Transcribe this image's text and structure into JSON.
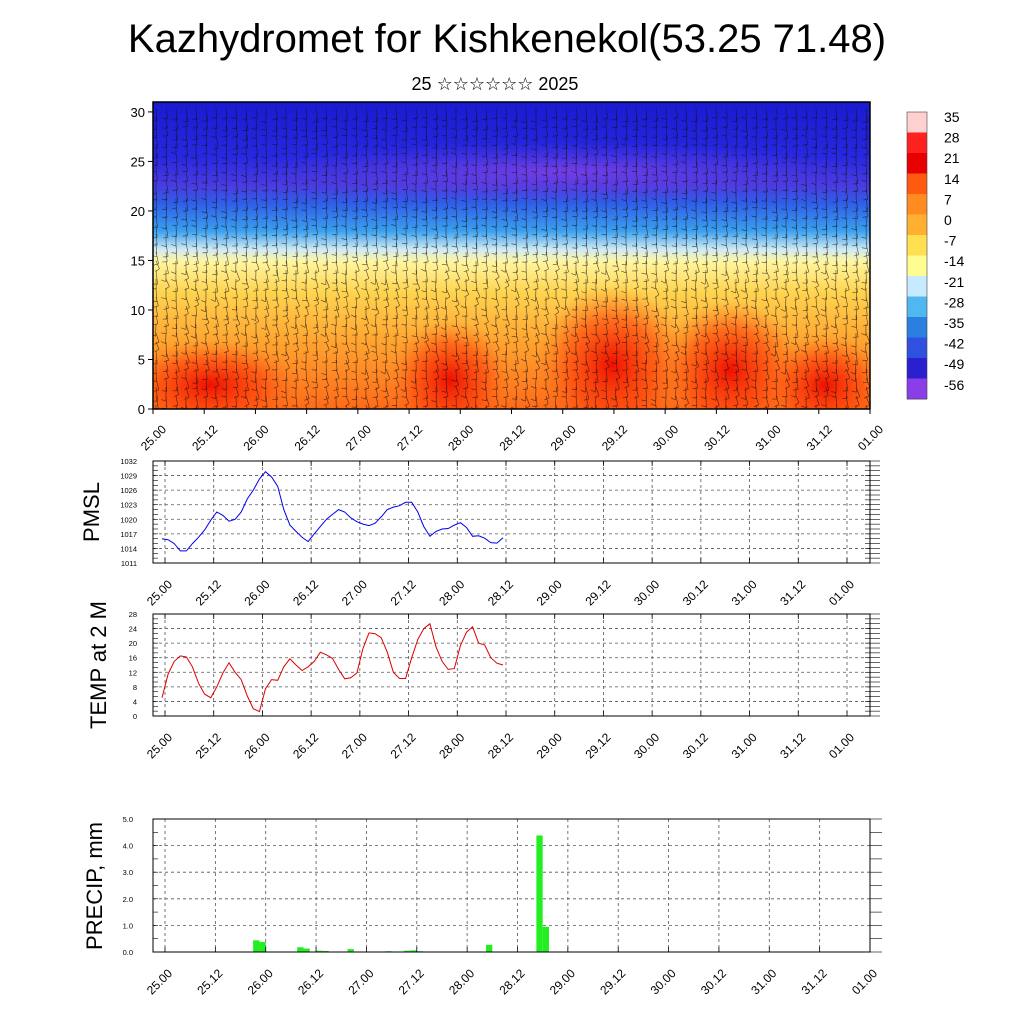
{
  "header": {
    "title": "Kazhydromet for Kishkenekol(53.25 71.48)",
    "subtitle": "25 ☆☆☆☆☆☆ 2025"
  },
  "colors": {
    "pmsl_line": "#0000ee",
    "temp_line": "#dd0000",
    "precip_bar": "#22ee22",
    "grid": "#555555",
    "colorbar": [
      "#ffd0d0",
      "#ff2020",
      "#e80000",
      "#ff5a10",
      "#ff8c20",
      "#ffb030",
      "#ffe050",
      "#fffc90",
      "#c8eaff",
      "#50b8f0",
      "#2a7fe0",
      "#3050e0",
      "#2a20d0",
      "#8a3ee8"
    ]
  },
  "chart_data": [
    {
      "id": "cross-section",
      "type": "heatmap",
      "title": "",
      "xlabel": "",
      "ylabel": "",
      "x_tick_labels": [
        "25.00",
        "25.12",
        "26.00",
        "26.12",
        "27.00",
        "27.12",
        "28.00",
        "28.12",
        "29.00",
        "29.12",
        "30.00",
        "30.12",
        "31.00",
        "31.12",
        "01.00"
      ],
      "y_ticks": [
        0,
        5,
        10,
        15,
        20,
        25,
        30
      ],
      "ylim": [
        0,
        31
      ],
      "colorbar_labels": [
        "35",
        "28",
        "21",
        "14",
        "7",
        "0",
        "-7",
        "-14",
        "-21",
        "-28",
        "-35",
        "-42",
        "-49",
        "-56"
      ]
    },
    {
      "id": "pmsl",
      "type": "line",
      "ylabel": "PMSL",
      "ylim": [
        1011,
        1032
      ],
      "y_ticks": [
        1011,
        1014,
        1017,
        1020,
        1023,
        1026,
        1029,
        1032
      ],
      "x_tick_labels": [
        "25.00",
        "25.12",
        "26.00",
        "26.12",
        "27.00",
        "27.12",
        "28.00",
        "28.12",
        "29.00",
        "29.12",
        "30.00",
        "30.12",
        "31.00",
        "31.12",
        "01.00"
      ],
      "step_hours": 3,
      "values": [
        1016,
        1015.8,
        1015,
        1013.5,
        1013.5,
        1015,
        1016.3,
        1017.8,
        1019.8,
        1021.5,
        1020.8,
        1019.6,
        1020,
        1021.5,
        1024.2,
        1026,
        1028.3,
        1029.8,
        1028.7,
        1026.8,
        1022,
        1018.8,
        1017.5,
        1016.3,
        1015.4,
        1017,
        1018.5,
        1020,
        1021,
        1022,
        1021.5,
        1020.3,
        1019.5,
        1019,
        1018.7,
        1019.2,
        1020.5,
        1022,
        1022.5,
        1022.8,
        1023.5,
        1023.5,
        1021.5,
        1018.5,
        1016.5,
        1017.5,
        1018,
        1018.1,
        1018.8,
        1019.3,
        1018.3,
        1016.5,
        1016.6,
        1016.1,
        1015.2,
        1015.1,
        1016.2
      ]
    },
    {
      "id": "temp",
      "type": "line",
      "ylabel": "TEMP at 2 M",
      "ylim": [
        0,
        28
      ],
      "y_ticks": [
        0,
        4,
        8,
        12,
        16,
        20,
        24,
        28
      ],
      "x_tick_labels": [
        "25.00",
        "25.12",
        "26.00",
        "26.12",
        "27.00",
        "27.12",
        "28.00",
        "28.12",
        "29.00",
        "29.12",
        "30.00",
        "30.12",
        "31.00",
        "31.12",
        "01.00"
      ],
      "step_hours": 3,
      "values": [
        5,
        11.5,
        15,
        16.5,
        16.2,
        13.5,
        9,
        6,
        5,
        8,
        11.8,
        14.6,
        12,
        10,
        5.5,
        2,
        1.2,
        7.5,
        10,
        9.8,
        13.5,
        15.7,
        14,
        12.5,
        13.5,
        15,
        17.5,
        16.8,
        15.8,
        12.8,
        10.2,
        10.5,
        11.8,
        18.5,
        22.8,
        22.6,
        21.5,
        17.5,
        12,
        10.3,
        10.3,
        16,
        21,
        24,
        25.3,
        19,
        15,
        12.8,
        13,
        19.3,
        23,
        24.5,
        20,
        19.5,
        16,
        14.5,
        14
      ]
    },
    {
      "id": "precip",
      "type": "bar",
      "ylabel": "PRECIP, mm",
      "ylim": [
        0,
        5
      ],
      "y_tick_labels": [
        "0.0",
        "1.0",
        "2.0",
        "3.0",
        "4.0",
        "5.0"
      ],
      "x_tick_labels": [
        "25.00",
        "25.12",
        "26.00",
        "26.12",
        "27.00",
        "27.12",
        "28.00",
        "28.12",
        "29.00",
        "29.12",
        "30.00",
        "30.12",
        "31.00",
        "31.12",
        "01.00"
      ],
      "step_hours": 3,
      "bars": [
        {
          "index": 14,
          "value": 0.44
        },
        {
          "index": 15,
          "value": 0.38
        },
        {
          "index": 21,
          "value": 0.18
        },
        {
          "index": 22,
          "value": 0.13
        },
        {
          "index": 24,
          "value": 0.05
        },
        {
          "index": 25,
          "value": 0.04
        },
        {
          "index": 29,
          "value": 0.11
        },
        {
          "index": 35,
          "value": 0.03
        },
        {
          "index": 38,
          "value": 0.05
        },
        {
          "index": 39,
          "value": 0.06
        },
        {
          "index": 40,
          "value": 0.03
        },
        {
          "index": 51,
          "value": 0.27
        },
        {
          "index": 59,
          "value": 4.38
        },
        {
          "index": 60,
          "value": 0.95
        }
      ]
    }
  ]
}
